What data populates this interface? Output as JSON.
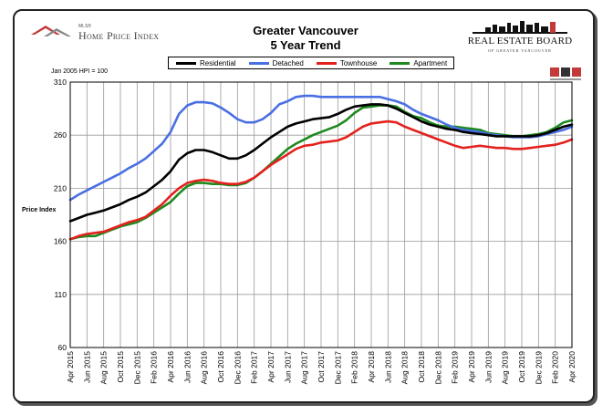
{
  "header": {
    "mls_small": "MLS®",
    "mls_name": "Home Price Index",
    "title_line1": "Greater Vancouver",
    "title_line2": "5 Year Trend",
    "board_name": "REAL ESTATE BOARD",
    "board_sub": "OF GREATER VANCOUVER",
    "hpi_note": "Jan 2005 HPI = 100"
  },
  "colors": {
    "Residential": "#000000",
    "Detached": "#4a6fe3",
    "Townhouse": "#e3221e",
    "Apartment": "#1e8a1e"
  },
  "chart_data": {
    "type": "line",
    "title": "Greater Vancouver 5 Year Trend",
    "ylabel": "Price Index",
    "ylim": [
      60,
      310
    ],
    "yticks": [
      60,
      110,
      160,
      210,
      260,
      310
    ],
    "grid": true,
    "legend": "top",
    "x": [
      "Apr 2015",
      "May 2015",
      "Jun 2015",
      "Jul 2015",
      "Aug 2015",
      "Sep 2015",
      "Oct 2015",
      "Nov 2015",
      "Dec 2015",
      "Jan 2016",
      "Feb 2016",
      "Mar 2016",
      "Apr 2016",
      "May 2016",
      "Jun 2016",
      "Jul 2016",
      "Aug 2016",
      "Sep 2016",
      "Oct 2016",
      "Nov 2016",
      "Dec 2016",
      "Jan 2017",
      "Feb 2017",
      "Mar 2017",
      "Apr 2017",
      "May 2017",
      "Jun 2017",
      "Jul 2017",
      "Aug 2017",
      "Sep 2017",
      "Oct 2017",
      "Nov 2017",
      "Dec 2017",
      "Jan 2018",
      "Feb 2018",
      "Mar 2018",
      "Apr 2018",
      "May 2018",
      "Jun 2018",
      "Jul 2018",
      "Aug 2018",
      "Sep 2018",
      "Oct 2018",
      "Nov 2018",
      "Dec 2018",
      "Jan 2019",
      "Feb 2019",
      "Mar 2019",
      "Apr 2019",
      "May 2019",
      "Jun 2019",
      "Jul 2019",
      "Aug 2019",
      "Sep 2019",
      "Oct 2019",
      "Nov 2019",
      "Dec 2019",
      "Jan 2020",
      "Feb 2020",
      "Mar 2020",
      "Apr 2020"
    ],
    "xtick_labels": [
      "Apr 2015",
      "Jun 2015",
      "Aug 2015",
      "Oct 2015",
      "Dec 2015",
      "Feb 2016",
      "Apr 2016",
      "Jun 2016",
      "Aug 2016",
      "Oct 2016",
      "Dec 2016",
      "Feb 2017",
      "Apr 2017",
      "Jun 2017",
      "Aug 2017",
      "Oct 2017",
      "Dec 2017",
      "Feb 2018",
      "Apr 2018",
      "Jun 2018",
      "Aug 2018",
      "Oct 2018",
      "Dec 2018",
      "Feb 2019",
      "Apr 2019",
      "Jun 2019",
      "Aug 2019",
      "Oct 2019",
      "Dec 2019",
      "Feb 2020",
      "Apr 2020"
    ],
    "series": [
      {
        "name": "Residential",
        "values": [
          179,
          182,
          185,
          187,
          189,
          192,
          195,
          199,
          202,
          206,
          212,
          218,
          226,
          237,
          243,
          246,
          246,
          244,
          241,
          238,
          238,
          241,
          246,
          252,
          258,
          263,
          268,
          271,
          273,
          275,
          276,
          277,
          280,
          284,
          287,
          288,
          289,
          289,
          288,
          285,
          281,
          277,
          273,
          270,
          268,
          266,
          265,
          263,
          262,
          261,
          260,
          259,
          259,
          259,
          259,
          259,
          260,
          262,
          265,
          268,
          270
        ]
      },
      {
        "name": "Detached",
        "values": [
          199,
          204,
          208,
          212,
          216,
          220,
          224,
          229,
          233,
          238,
          245,
          252,
          263,
          280,
          288,
          291,
          291,
          290,
          286,
          281,
          275,
          272,
          272,
          275,
          281,
          289,
          292,
          296,
          297,
          297,
          296,
          296,
          296,
          296,
          296,
          296,
          296,
          296,
          294,
          292,
          289,
          284,
          280,
          277,
          274,
          270,
          267,
          265,
          264,
          263,
          261,
          260,
          259,
          258,
          258,
          258,
          259,
          261,
          263,
          265,
          268
        ]
      },
      {
        "name": "Townhouse",
        "values": [
          162,
          165,
          167,
          168,
          169,
          172,
          175,
          178,
          180,
          183,
          189,
          195,
          203,
          210,
          215,
          217,
          218,
          217,
          215,
          214,
          214,
          216,
          220,
          226,
          232,
          237,
          242,
          247,
          250,
          251,
          253,
          254,
          255,
          258,
          263,
          268,
          271,
          272,
          273,
          272,
          268,
          265,
          262,
          259,
          256,
          253,
          250,
          248,
          249,
          250,
          249,
          248,
          248,
          247,
          247,
          248,
          249,
          250,
          251,
          253,
          256
        ]
      },
      {
        "name": "Apartment",
        "values": [
          162,
          164,
          165,
          165,
          168,
          171,
          174,
          176,
          178,
          182,
          187,
          192,
          197,
          205,
          212,
          215,
          215,
          214,
          214,
          213,
          213,
          215,
          220,
          226,
          233,
          240,
          247,
          252,
          256,
          260,
          263,
          266,
          269,
          274,
          281,
          286,
          287,
          288,
          288,
          287,
          282,
          278,
          276,
          272,
          269,
          268,
          268,
          267,
          266,
          265,
          262,
          261,
          260,
          259,
          259,
          260,
          261,
          263,
          267,
          272,
          274
        ]
      }
    ]
  }
}
